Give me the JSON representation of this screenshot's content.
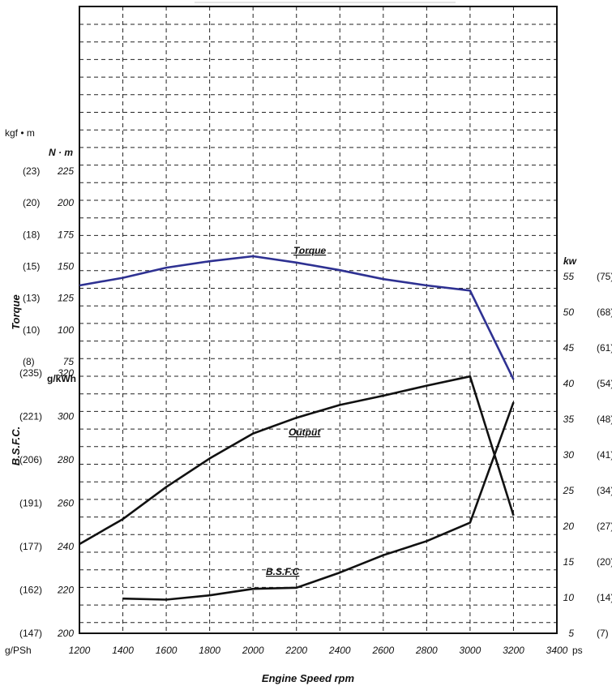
{
  "chart_data": {
    "type": "line",
    "xlabel": "Engine Speed  rpm",
    "xlim": [
      1200,
      3400
    ],
    "x_ticks": [
      1200,
      1400,
      1600,
      1800,
      2000,
      2200,
      2400,
      2600,
      2800,
      3000,
      3200,
      3400
    ],
    "grid": true,
    "axes": {
      "torque": {
        "title": "Torque",
        "unit": "N · m",
        "alt_unit": "kgf • m",
        "ticks": [
          "225",
          "200",
          "175",
          "150",
          "125",
          "100",
          "75"
        ],
        "alt_ticks": [
          "(23)",
          "(20)",
          "(18)",
          "(15)",
          "(13)",
          "(10)",
          "(8)"
        ],
        "range": [
          75,
          225
        ]
      },
      "bsfc": {
        "title": "B.S.F.C.",
        "unit": "g/kWh",
        "alt_unit": "g/PSh",
        "ticks": [
          "320",
          "300",
          "280",
          "260",
          "240",
          "220",
          "200"
        ],
        "alt_ticks": [
          "(235)",
          "(221)",
          "(206)",
          "(191)",
          "(177)",
          "(162)",
          "(147)"
        ],
        "range": [
          200,
          320
        ]
      },
      "output": {
        "unit": "kw",
        "alt_unit": "ps",
        "ticks": [
          "55",
          "50",
          "45",
          "40",
          "35",
          "30",
          "25",
          "20",
          "15",
          "10",
          "5"
        ],
        "alt_ticks": [
          "(75)",
          "(68)",
          "(61)",
          "(54)",
          "(48)",
          "(41)",
          "(34)",
          "(27)",
          "(20)",
          "(14)",
          "(7)"
        ],
        "range": [
          5,
          55
        ]
      }
    },
    "series": [
      {
        "name": "Torque",
        "axis": "torque",
        "color": "#2e3192",
        "x": [
          1200,
          1400,
          1600,
          1800,
          2000,
          2200,
          2400,
          2600,
          2800,
          3000,
          3200
        ],
        "y": [
          135,
          141,
          149,
          154,
          158,
          153,
          147,
          140,
          135,
          131,
          61
        ]
      },
      {
        "name": "Output",
        "axis": "output",
        "color": "#111111",
        "x": [
          1200,
          1400,
          1600,
          1800,
          2000,
          2200,
          2400,
          2600,
          2800,
          3000,
          3200
        ],
        "y": [
          17.5,
          21,
          25.5,
          29.5,
          33,
          35.2,
          37,
          38.3,
          39.7,
          41,
          21.5
        ]
      },
      {
        "name": "B.S.F.C",
        "axis": "bsfc",
        "color": "#111111",
        "x": [
          1400,
          1600,
          1800,
          2000,
          2200,
          2400,
          2600,
          2800,
          3000,
          3200
        ],
        "y": [
          216,
          215.5,
          217.5,
          220.5,
          221,
          228,
          236,
          242.5,
          251,
          306.5
        ]
      }
    ]
  }
}
